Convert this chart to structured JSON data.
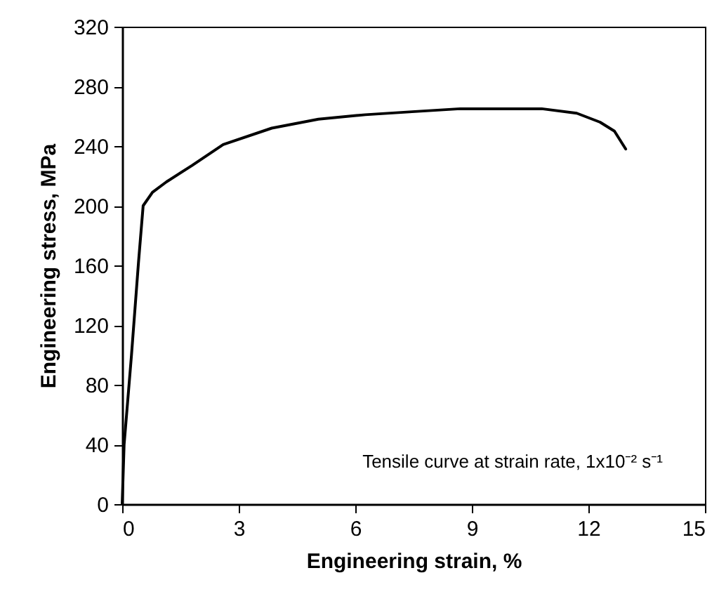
{
  "chart_data": {
    "type": "line",
    "xlabel": "Engineering strain, %",
    "ylabel": "Engineering stress, MPa",
    "annotations": [
      "Tensile curve at strain rate, 1x10⁻² s⁻¹"
    ],
    "series": [
      {
        "color": "#000000",
        "x": [
          0,
          0.05,
          0.24,
          0.42,
          0.54,
          0.78,
          1.14,
          1.8,
          2.6,
          3.85,
          5.05,
          6.26,
          7.46,
          8.7,
          9.9,
          10.8,
          11.7,
          12.3,
          12.67,
          12.96
        ],
        "values": [
          0,
          40,
          100,
          162,
          200,
          209,
          216,
          227,
          241,
          252,
          258,
          261,
          263,
          265,
          265,
          265,
          262,
          256,
          250,
          238
        ]
      }
    ],
    "xlim": [
      0,
      15
    ],
    "xticks": [
      0,
      3,
      6,
      9,
      12,
      15
    ],
    "ylim": [
      0,
      320
    ],
    "yticks": [
      0,
      40,
      80,
      120,
      160,
      200,
      240,
      280,
      320
    ],
    "grid": false,
    "line_style": "solid",
    "marker": "none"
  }
}
